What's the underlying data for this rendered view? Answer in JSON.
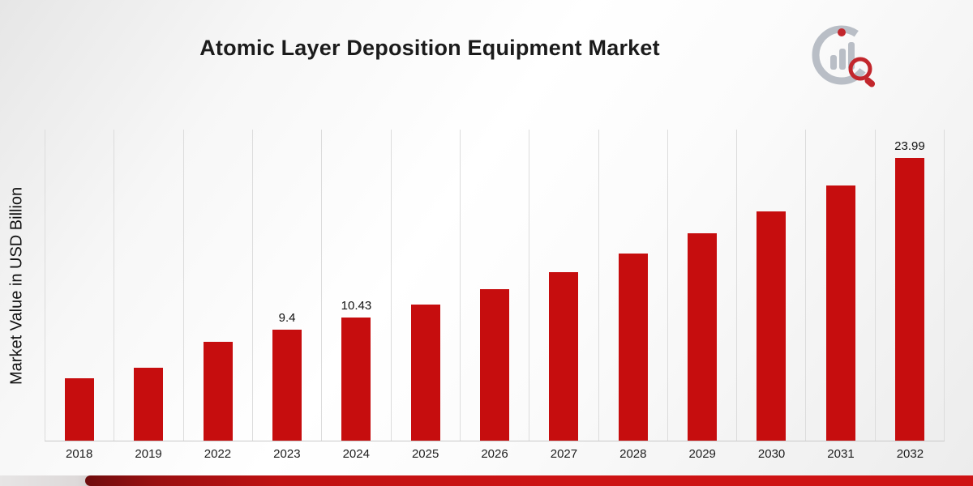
{
  "page": {
    "title": "Atomic Layer Deposition Equipment Market"
  },
  "branding": {
    "logo_name": "market-research-future-logo",
    "logo_gray": "#b9bec6",
    "logo_red": "#c2262c"
  },
  "chart_data": {
    "type": "bar",
    "title": "Atomic Layer Deposition Equipment Market",
    "ylabel": "Market Value in USD Billion",
    "xlabel": "",
    "categories": [
      "2018",
      "2019",
      "2022",
      "2023",
      "2024",
      "2025",
      "2026",
      "2027",
      "2028",
      "2029",
      "2030",
      "2031",
      "2032"
    ],
    "values": [
      5.3,
      6.2,
      8.4,
      9.4,
      10.43,
      11.55,
      12.9,
      14.3,
      15.9,
      17.6,
      19.5,
      21.7,
      23.99
    ],
    "data_labels": [
      "",
      "",
      "",
      "9.4",
      "10.43",
      "",
      "",
      "",
      "",
      "",
      "",
      "",
      "23.99"
    ],
    "ylim": [
      0,
      26.5
    ],
    "bar_color": "#c60d0e",
    "grid": "vertical-only",
    "legend": "none"
  }
}
